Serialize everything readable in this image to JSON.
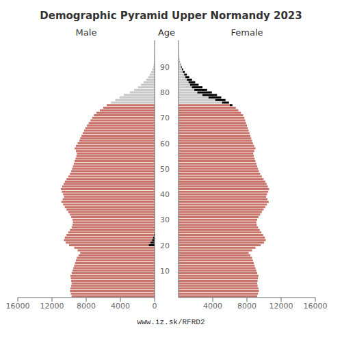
{
  "chart_data": {
    "type": "bar",
    "orientation": "horizontal",
    "stacked": true,
    "title": "Demographic Pyramid Upper Normandy 2023",
    "ylabel": "Age",
    "annotations": [
      "www.iz.sk/RFRD2"
    ],
    "categories": [
      null,
      null,
      null,
      null,
      null,
      null,
      null,
      null,
      null,
      null,
      "10",
      null,
      null,
      null,
      null,
      null,
      null,
      null,
      null,
      null,
      "20",
      null,
      null,
      null,
      null,
      null,
      null,
      null,
      null,
      null,
      "30",
      null,
      null,
      null,
      null,
      null,
      null,
      null,
      null,
      null,
      "40",
      null,
      null,
      null,
      null,
      null,
      null,
      null,
      null,
      null,
      "50",
      null,
      null,
      null,
      null,
      null,
      null,
      null,
      null,
      null,
      "60",
      null,
      null,
      null,
      null,
      null,
      null,
      null,
      null,
      null,
      "70",
      null,
      null,
      null,
      null,
      null,
      null,
      null,
      null,
      null,
      "80",
      null,
      null,
      null,
      null,
      null,
      null,
      null,
      null,
      null,
      "90",
      null,
      null,
      null,
      null,
      null,
      null,
      null,
      null,
      null,
      null
    ],
    "xlim": [
      0,
      16000
    ],
    "xticks": [
      0,
      4000,
      8000,
      12000,
      16000
    ],
    "series": [
      {
        "name": "Male",
        "segments": [
          {
            "color": "#000000",
            "values": [
              0,
              0,
              0,
              0,
              0,
              0,
              0,
              0,
              0,
              0,
              0,
              0,
              0,
              0,
              0,
              0,
              0,
              0,
              0,
              0,
              700,
              500,
              300,
              200,
              100,
              0,
              0,
              0,
              0,
              0,
              0,
              0,
              0,
              0,
              0,
              0,
              0,
              0,
              0,
              0,
              0,
              0,
              0,
              0,
              0,
              0,
              0,
              0,
              0,
              0,
              0,
              0,
              0,
              0,
              0,
              0,
              0,
              0,
              0,
              0,
              0,
              0,
              0,
              0,
              0,
              0,
              0,
              0,
              0,
              0,
              0,
              0,
              0,
              0,
              0,
              0,
              0,
              0,
              0,
              0,
              0,
              0,
              0,
              0,
              0,
              0,
              0,
              0,
              0,
              0,
              0,
              0,
              0,
              0,
              0,
              0,
              0,
              0,
              0,
              0,
              0
            ]
          },
          {
            "colors": [
              "#c8736a",
              "#c8736a",
              "#c8736a",
              "#c8736a",
              "#c8736a",
              "#c8736a",
              "#c8736a",
              "#c8736a",
              "#c8736a",
              "#c8736a",
              "#c8736a",
              "#c8736a",
              "#c8736a",
              "#c8736a",
              "#c8736a",
              "#c8736a",
              "#c8736a",
              "#c8736a",
              "#c8736a",
              "#c8736a",
              "#c8736a",
              "#c8736a",
              "#c8736a",
              "#c8736a",
              "#c8736a",
              "#c8736a",
              "#c8736a",
              "#c8736a",
              "#c8736a",
              "#c8736a",
              "#c8736a",
              "#c8736a",
              "#c8736a",
              "#c8736a",
              "#c8736a",
              "#c8736a",
              "#c8736a",
              "#c8736a",
              "#c8736a",
              "#c8736a",
              "#c8736a",
              "#c8736a",
              "#c8736a",
              "#c8736a",
              "#c8736a",
              "#c8736a",
              "#c8736a",
              "#c8736a",
              "#c8736a",
              "#c8736a",
              "#c8736a",
              "#c8736a",
              "#c8736a",
              "#c8736a",
              "#c8736a",
              "#c8736a",
              "#c8736a",
              "#c8736a",
              "#c8736a",
              "#c8736a",
              "#c8736a",
              "#c8736a",
              "#c8736a",
              "#c8736a",
              "#c8736a",
              "#c8736a",
              "#c8736a",
              "#c8736a",
              "#c8736a",
              "#c8736a",
              "#c8736a",
              "#c8736a",
              "#c8736a",
              "#c8736a",
              "#c8736a",
              "#c8736a",
              "#c8c8c8",
              "#c8c8c8",
              "#c8c8c8",
              "#c8c8c8",
              "#c8c8c8",
              "#c8c8c8",
              "#c8c8c8",
              "#c8c8c8",
              "#c8c8c8",
              "#c8c8c8",
              "#c8c8c8",
              "#c8c8c8",
              "#c8c8c8",
              "#c8c8c8",
              "#c8c8c8",
              "#c8c8c8",
              "#c8c8c8",
              "#c8c8c8",
              "#c8c8c8",
              "#c8c8c8",
              "#c8c8c8",
              "#c8c8c8",
              "#c8c8c8",
              "#c8c8c8",
              "#c8c8c8"
            ],
            "values": [
              9700,
              9800,
              9900,
              9850,
              9750,
              9700,
              9750,
              9800,
              9850,
              9700,
              9600,
              9500,
              9400,
              9300,
              9200,
              9100,
              8900,
              8700,
              9000,
              9400,
              9300,
              9900,
              10300,
              10300,
              10200,
              10100,
              9900,
              9700,
              9600,
              9550,
              9600,
              9750,
              9900,
              10100,
              10300,
              10500,
              10700,
              10900,
              10750,
              10600,
              10700,
              10850,
              10950,
              10800,
              10650,
              10500,
              10300,
              10100,
              9900,
              9750,
              9650,
              9550,
              9450,
              9350,
              9250,
              9150,
              9100,
              9200,
              9350,
              9200,
              9000,
              8800,
              8700,
              8550,
              8400,
              8250,
              8100,
              7900,
              7700,
              7500,
              7300,
              7100,
              6800,
              6400,
              6000,
              5600,
              5100,
              4600,
              4100,
              3600,
              2900,
              2400,
              1950,
              1600,
              1280,
              990,
              760,
              560,
              400,
              270,
              170,
              105,
              62,
              36,
              20,
              11,
              6,
              3,
              1,
              1,
              0
            ]
          }
        ]
      },
      {
        "name": "Female",
        "segments": [
          {
            "colors": [
              "#c8736a",
              "#c8736a",
              "#c8736a",
              "#c8736a",
              "#c8736a",
              "#c8736a",
              "#c8736a",
              "#c8736a",
              "#c8736a",
              "#c8736a",
              "#c8736a",
              "#c8736a",
              "#c8736a",
              "#c8736a",
              "#c8736a",
              "#c8736a",
              "#c8736a",
              "#c8736a",
              "#c8736a",
              "#c8736a",
              "#c8736a",
              "#c8736a",
              "#c8736a",
              "#c8736a",
              "#c8736a",
              "#c8736a",
              "#c8736a",
              "#c8736a",
              "#c8736a",
              "#c8736a",
              "#c8736a",
              "#c8736a",
              "#c8736a",
              "#c8736a",
              "#c8736a",
              "#c8736a",
              "#c8736a",
              "#c8736a",
              "#c8736a",
              "#c8736a",
              "#c8736a",
              "#c8736a",
              "#c8736a",
              "#c8736a",
              "#c8736a",
              "#c8736a",
              "#c8736a",
              "#c8736a",
              "#c8736a",
              "#c8736a",
              "#c8736a",
              "#c8736a",
              "#c8736a",
              "#c8736a",
              "#c8736a",
              "#c8736a",
              "#c8736a",
              "#c8736a",
              "#c8736a",
              "#c8736a",
              "#c8736a",
              "#c8736a",
              "#c8736a",
              "#c8736a",
              "#c8736a",
              "#c8736a",
              "#c8736a",
              "#c8736a",
              "#c8736a",
              "#c8736a",
              "#c8736a",
              "#c8736a",
              "#c8736a",
              "#c8736a",
              "#c8736a",
              "#c8736a",
              "#c8c8c8",
              "#c8c8c8",
              "#c8c8c8",
              "#c8c8c8",
              "#c8c8c8",
              "#c8c8c8",
              "#c8c8c8",
              "#c8c8c8",
              "#c8c8c8",
              "#c8c8c8",
              "#c8c8c8",
              "#c8c8c8",
              "#c8c8c8",
              "#c8c8c8",
              "#c8c8c8",
              "#c8c8c8",
              "#c8c8c8",
              "#c8c8c8",
              "#c8c8c8",
              "#c8c8c8",
              "#c8c8c8",
              "#c8c8c8",
              "#c8c8c8",
              "#c8c8c8",
              "#c8c8c8"
            ],
            "values": [
              9200,
              9300,
              9400,
              9350,
              9250,
              9200,
              9250,
              9300,
              9350,
              9200,
              9100,
              9000,
              8900,
              8800,
              8700,
              8600,
              8400,
              8200,
              8600,
              9000,
              9600,
              10000,
              10200,
              10100,
              9900,
              9700,
              9500,
              9300,
              9150,
              9100,
              9200,
              9350,
              9550,
              9750,
              9950,
              10150,
              10350,
              10550,
              10400,
              10250,
              10350,
              10500,
              10600,
              10450,
              10300,
              10150,
              9950,
              9750,
              9550,
              9400,
              9300,
              9200,
              9100,
              9000,
              8900,
              8800,
              8750,
              8850,
              9000,
              8850,
              8700,
              8600,
              8500,
              8400,
              8300,
              8200,
              8100,
              8000,
              7900,
              7800,
              7700,
              7550,
              7300,
              7000,
              6700,
              6000,
              5100,
              4300,
              3500,
              2800,
              2200,
              1850,
              1550,
              1350,
              1170,
              980,
              800,
              660,
              510,
              400,
              300,
              213,
              143,
              91,
              55,
              32,
              18,
              10,
              6,
              3,
              1
            ]
          },
          {
            "color": "#000000",
            "values": [
              0,
              0,
              0,
              0,
              0,
              0,
              0,
              0,
              0,
              0,
              0,
              0,
              0,
              0,
              0,
              0,
              0,
              0,
              0,
              0,
              0,
              0,
              0,
              0,
              0,
              0,
              0,
              0,
              0,
              0,
              0,
              0,
              0,
              0,
              0,
              0,
              0,
              0,
              0,
              0,
              0,
              0,
              0,
              0,
              0,
              0,
              0,
              0,
              0,
              0,
              0,
              0,
              0,
              0,
              0,
              0,
              0,
              0,
              0,
              0,
              0,
              0,
              0,
              0,
              0,
              0,
              0,
              0,
              0,
              0,
              0,
              0,
              0,
              0,
              0,
              300,
              800,
              1200,
              1500,
              1700,
              1700,
              1500,
              1250,
              1000,
              780,
              600,
              450,
              320,
              220,
              140,
              80,
              45,
              25,
              13,
              7,
              4,
              2,
              1,
              0,
              0,
              0
            ]
          }
        ]
      }
    ]
  }
}
